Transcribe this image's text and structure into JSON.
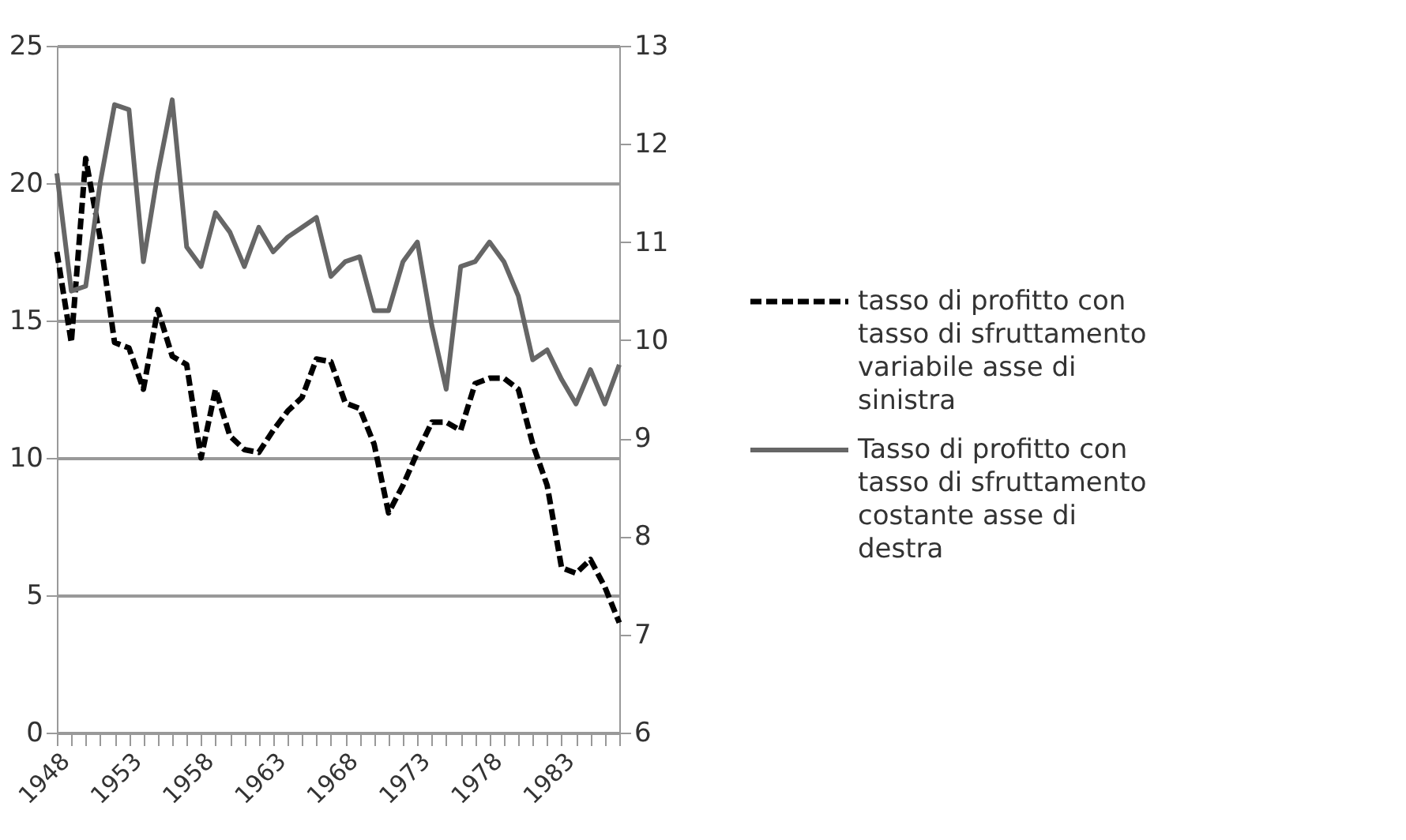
{
  "chart_data": {
    "type": "line",
    "x": [
      1948,
      1949,
      1950,
      1951,
      1952,
      1953,
      1954,
      1955,
      1956,
      1957,
      1958,
      1959,
      1960,
      1961,
      1962,
      1963,
      1964,
      1965,
      1966,
      1967,
      1968,
      1969,
      1970,
      1971,
      1972,
      1973,
      1974,
      1975,
      1976,
      1977,
      1978,
      1979,
      1980,
      1981,
      1982,
      1983,
      1984,
      1985,
      1986,
      1987
    ],
    "xlim": [
      1948,
      1987
    ],
    "xticks": [
      1948,
      {
        "value": 1949,
        "label": null
      },
      {
        "value": 1950,
        "label": null
      },
      {
        "value": 1951,
        "label": null
      },
      {
        "value": 1952,
        "label": null
      },
      1953,
      {
        "value": 1954,
        "label": null
      },
      {
        "value": 1955,
        "label": null
      },
      {
        "value": 1956,
        "label": null
      },
      {
        "value": 1957,
        "label": null
      },
      1958,
      {
        "value": 1959,
        "label": null
      },
      {
        "value": 1960,
        "label": null
      },
      {
        "value": 1961,
        "label": null
      },
      {
        "value": 1962,
        "label": null
      },
      1963,
      {
        "value": 1964,
        "label": null
      },
      {
        "value": 1965,
        "label": null
      },
      {
        "value": 1966,
        "label": null
      },
      {
        "value": 1967,
        "label": null
      },
      1968,
      {
        "value": 1969,
        "label": null
      },
      {
        "value": 1970,
        "label": null
      },
      {
        "value": 1971,
        "label": null
      },
      {
        "value": 1972,
        "label": null
      },
      1973,
      {
        "value": 1974,
        "label": null
      },
      {
        "value": 1975,
        "label": null
      },
      {
        "value": 1976,
        "label": null
      },
      {
        "value": 1977,
        "label": null
      },
      1978,
      {
        "value": 1979,
        "label": null
      },
      {
        "value": 1980,
        "label": null
      },
      {
        "value": 1981,
        "label": null
      },
      {
        "value": 1982,
        "label": null
      },
      1983,
      {
        "value": 1984,
        "label": null
      },
      {
        "value": 1985,
        "label": null
      },
      {
        "value": 1986,
        "label": null
      },
      {
        "value": 1987,
        "label": null
      }
    ],
    "ylim": [
      0,
      25
    ],
    "yticks": [
      0,
      5,
      10,
      15,
      20,
      25
    ],
    "y2lim": [
      6,
      13
    ],
    "y2ticks": [
      6,
      7,
      8,
      9,
      10,
      11,
      12,
      13
    ],
    "grid": "y",
    "legend": "right",
    "marker": "none",
    "series": [
      {
        "name": "tasso di profitto con tasso di sfruttamento variabile asse di sinistra",
        "color": "#000000",
        "line_style": "dashed",
        "values": [
          17.5,
          14.2,
          20.9,
          18.0,
          14.2,
          14.0,
          12.5,
          15.4,
          13.7,
          13.4,
          10.0,
          12.5,
          10.8,
          10.3,
          10.2,
          11.0,
          11.7,
          12.2,
          13.6,
          13.5,
          12.0,
          11.8,
          10.5,
          8.0,
          9.0,
          10.2,
          11.3,
          11.3,
          11.0,
          12.7,
          12.9,
          12.9,
          12.5,
          10.5,
          9.0,
          6.0,
          5.8,
          6.3,
          5.3,
          4.0
        ]
      },
      {
        "name": "Tasso di profitto con tasso di sfruttamento costante asse di destra",
        "color": "#666666",
        "line_style": "solid",
        "axis": "y2",
        "values": [
          11.7,
          10.5,
          10.55,
          11.6,
          12.4,
          12.35,
          10.8,
          11.7,
          12.45,
          10.95,
          10.75,
          11.3,
          11.1,
          10.75,
          11.15,
          10.9,
          11.05,
          11.15,
          11.25,
          10.65,
          10.8,
          10.85,
          10.3,
          10.3,
          10.8,
          11.0,
          10.15,
          9.5,
          10.75,
          10.8,
          11.0,
          10.8,
          10.45,
          9.8,
          9.9,
          9.6,
          9.35,
          9.7,
          9.35,
          9.75
        ]
      }
    ]
  }
}
